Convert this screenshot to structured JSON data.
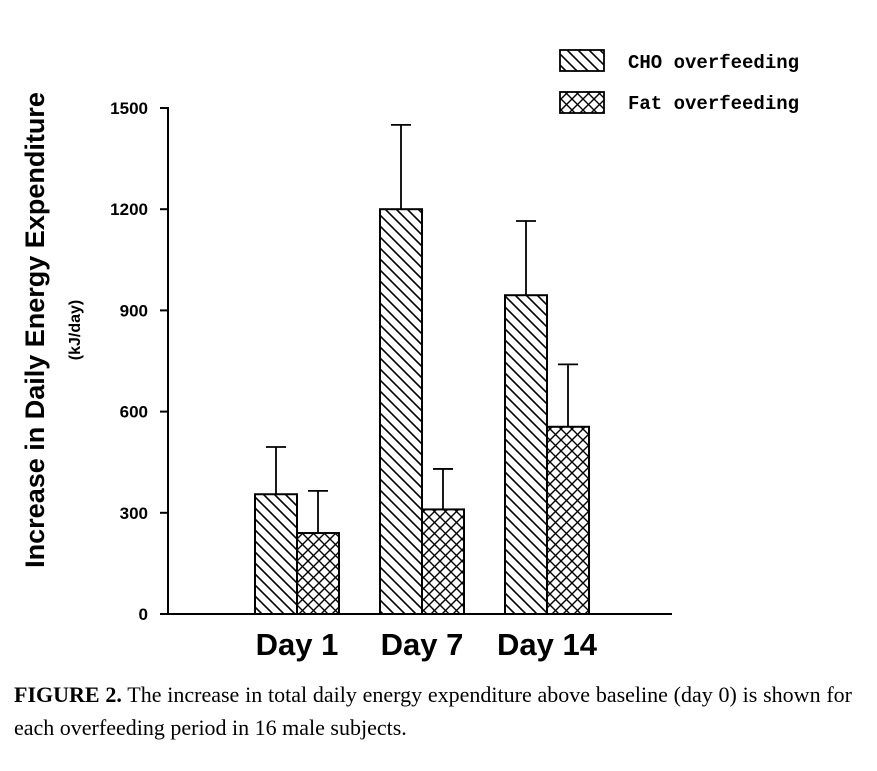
{
  "chart_data": {
    "type": "bar",
    "ylabel": "Increase in Daily Energy Expenditure",
    "ylabel_unit": "(kJ/day)",
    "categories": [
      "Day 1",
      "Day 7",
      "Day 14"
    ],
    "ylim": [
      0,
      1500
    ],
    "yticks": [
      0,
      300,
      600,
      900,
      1200,
      1500
    ],
    "legend_position": "top-right",
    "series": [
      {
        "name": "CHO overfeeding",
        "pattern": "diagonal-hatch",
        "values": [
          355,
          1200,
          945
        ],
        "errors": [
          140,
          250,
          220
        ]
      },
      {
        "name": "Fat overfeeding",
        "pattern": "crosshatch",
        "values": [
          240,
          310,
          555
        ],
        "errors": [
          125,
          120,
          185
        ]
      }
    ]
  },
  "caption": {
    "label": "FIGURE 2.",
    "text": "The increase in total daily energy expenditure above baseline (day 0) is shown for each overfeeding period in 16 male subjects."
  },
  "colors": {
    "ink": "#000000",
    "background": "#ffffff"
  }
}
